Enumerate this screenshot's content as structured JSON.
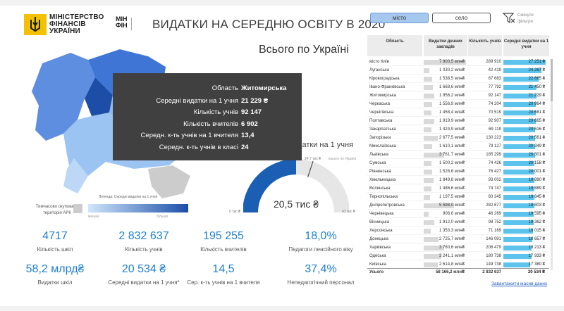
{
  "header": {
    "ministry_line1": "МІНІСТЕРСТВО",
    "ministry_line2": "ФІНАНСІВ",
    "ministry_line3": "УКРАЇНИ",
    "logo2_line1": "МІН",
    "logo2_line2": "ФІН",
    "title": "ВИДАТКИ НА СЕРЕДНЮ ОСВІТУ В 2020"
  },
  "filters": {
    "city_label": "місто",
    "village_label": "село",
    "clear_label": "Скинути фільтри"
  },
  "total_title": "Всього по Україні",
  "map": {
    "legend_title": "Легенда: Середні видатки на 1 учня",
    "legend_min": "менше",
    "legend_max": "більше",
    "occupied_label": "Тимчасово окупована територія АРК"
  },
  "gauge": {
    "title": "Середні видатки на 1 учня",
    "value": 20534,
    "value_label": "20,5 тис ₴",
    "min_label": "0 тис ₴",
    "max_label": "41 тис ₴",
    "target_label": "24,7 тис ₴",
    "target_caption": "всього по Україні",
    "min": 0,
    "max": 41068,
    "target": 24700
  },
  "tooltip": {
    "rows": [
      {
        "key": "Область",
        "value": "Житомирська"
      },
      {
        "key": "Середні видатки на 1 учня",
        "value": "21 229 ₴"
      },
      {
        "key": "Кількість учнів",
        "value": "92 147"
      },
      {
        "key": "Кількість вчителів",
        "value": "6 902"
      },
      {
        "key": "Середн. к-ть учнів на 1 вчителя",
        "value": "13,4"
      },
      {
        "key": "Середн. к-ть учнів в класі",
        "value": "24"
      }
    ]
  },
  "kpis": [
    {
      "value": "4717",
      "label": "Кількість шкіл"
    },
    {
      "value": "2 832 637",
      "label": "Кількість учнів"
    },
    {
      "value": "195 255",
      "label": "Кількість вчителів"
    },
    {
      "value": "18,0%",
      "label": "Педагоги пенсійного віку"
    },
    {
      "value": "58,2 млрд₴",
      "label": "Видатки шкіл"
    },
    {
      "value": "20 534 ₴",
      "label": "Середні видатки на 1 учня*"
    },
    {
      "value": "14,5",
      "label": "Сер. к-ть учнів на 1 вчителя"
    },
    {
      "value": "37,4%",
      "label": "Непедагогічний персонал"
    }
  ],
  "table": {
    "headers": {
      "region": "Область",
      "spend": "Видатки денних закладів",
      "students": "Кількість учнів",
      "avg": "Середні видатки на 1 учня"
    },
    "rows": [
      {
        "region": "місто Київ",
        "spend": "7 900,5 млн₴",
        "spend_val": 7900.5,
        "students": "289 910",
        "avg": "27 251 ₴",
        "avg_val": 27251
      },
      {
        "region": "Луганська",
        "spend": "1 030,2 млн₴",
        "spend_val": 1030.2,
        "students": "42 419",
        "avg": "24 287 ₴",
        "avg_val": 24287
      },
      {
        "region": "Кіровоградська",
        "spend": "1 538,5 млн₴",
        "spend_val": 1538.5,
        "students": "67 683",
        "avg": "22 665 ₴",
        "avg_val": 22665
      },
      {
        "region": "Івано-Франківська",
        "spend": "1 668,6 млн₴",
        "spend_val": 1668.6,
        "students": "77 792",
        "avg": "21 450 ₴",
        "avg_val": 21450
      },
      {
        "region": "Житомирська",
        "spend": "1 956,2 млн₴",
        "spend_val": 1956.2,
        "students": "92 147",
        "avg": "21 229 ₴",
        "avg_val": 21229
      },
      {
        "region": "Черкаська",
        "spend": "1 556,9 млн₴",
        "spend_val": 1556.9,
        "students": "74 204",
        "avg": "20 964 ₴",
        "avg_val": 20964
      },
      {
        "region": "Чернігівська",
        "spend": "1 458,4 млн₴",
        "spend_val": 1458.4,
        "students": "70 519",
        "avg": "20 681 ₴",
        "avg_val": 20681
      },
      {
        "region": "Полтавська",
        "spend": "1 919,9 млн₴",
        "spend_val": 1919.9,
        "students": "92 907",
        "avg": "20 665 ₴",
        "avg_val": 20665
      },
      {
        "region": "Закарпатська",
        "spend": "1 424,9 млн₴",
        "spend_val": 1424.9,
        "students": "69 119",
        "avg": "20 616 ₴",
        "avg_val": 20616
      },
      {
        "region": "Запорізька",
        "spend": "2 677,5 млн₴",
        "spend_val": 2677.5,
        "students": "130 223",
        "avg": "20 561 ₴",
        "avg_val": 20561
      },
      {
        "region": "Миколаївська",
        "spend": "1 610,1 млн₴",
        "spend_val": 1610.1,
        "students": "79 127",
        "avg": "20 349 ₴",
        "avg_val": 20349
      },
      {
        "region": "Львівська",
        "spend": "3 761,7 млн₴",
        "spend_val": 3761.7,
        "students": "185 299",
        "avg": "20 301 ₴",
        "avg_val": 20301
      },
      {
        "region": "Сумська",
        "spend": "1 500,2 млн₴",
        "spend_val": 1500.2,
        "students": "74 426",
        "avg": "20 158 ₴",
        "avg_val": 20158
      },
      {
        "region": "Рівненська",
        "spend": "1 528,6 млн₴",
        "spend_val": 1528.6,
        "students": "76 427",
        "avg": "20 001 ₴",
        "avg_val": 20001
      },
      {
        "region": "Хмельницька",
        "spend": "1 849,8 млн₴",
        "spend_val": 1849.8,
        "students": "93 002",
        "avg": "19 890 ₴",
        "avg_val": 19890
      },
      {
        "region": "Волинська",
        "spend": "1 486,6 млн₴",
        "spend_val": 1486.6,
        "students": "74 747",
        "avg": "19 889 ₴",
        "avg_val": 19889
      },
      {
        "region": "Тернопільська",
        "spend": "1 197,5 млн₴",
        "spend_val": 1197.5,
        "students": "60 345",
        "avg": "19 845 ₴",
        "avg_val": 19845
      },
      {
        "region": "Дніпропетровська",
        "spend": "5 598,0 млн₴",
        "spend_val": 5598.0,
        "students": "282 677",
        "avg": "19 803 ₴",
        "avg_val": 19803
      },
      {
        "region": "Чернівецька",
        "spend": "906,6 млн₴",
        "spend_val": 906.6,
        "students": "46 269",
        "avg": "19 595 ₴",
        "avg_val": 19595
      },
      {
        "region": "Вінницька",
        "spend": "1 912,0 млн₴",
        "spend_val": 1912.0,
        "students": "98 752",
        "avg": "19 362 ₴",
        "avg_val": 19362
      },
      {
        "region": "Херсонська",
        "spend": "1 353,3 млн₴",
        "spend_val": 1353.3,
        "students": "71 169",
        "avg": "19 015 ₴",
        "avg_val": 19015
      },
      {
        "region": "Донецька",
        "spend": "2 725,7 млн₴",
        "spend_val": 2725.7,
        "students": "146 091",
        "avg": "18 657 ₴",
        "avg_val": 18657
      },
      {
        "region": "Харківська",
        "spend": "3 760,6 млн₴",
        "spend_val": 3760.6,
        "students": "206 479",
        "avg": "18 213 ₴",
        "avg_val": 18213
      },
      {
        "region": "Одеська",
        "spend": "3 241,1 млн₴",
        "spend_val": 3241.1,
        "students": "180 738",
        "avg": "17 933 ₴",
        "avg_val": 17933
      },
      {
        "region": "Київська",
        "spend": "2 614,8 млн₴",
        "spend_val": 2614.8,
        "students": "149 738",
        "avg": "17 380 ₴",
        "avg_val": 17380
      }
    ],
    "total": {
      "region": "Усього",
      "spend": "58 166,2 млн₴",
      "students": "2 832 637",
      "avg": "20 534 ₴"
    },
    "download_label": "Завантажити масив даних"
  },
  "colors": {
    "accent": "#1f7fd1",
    "gauge_fill": "#1a5fb4",
    "avg_bar": "#5bc3ec",
    "tooltip_bg": "#404040",
    "logo_yellow": "#f2c100"
  }
}
